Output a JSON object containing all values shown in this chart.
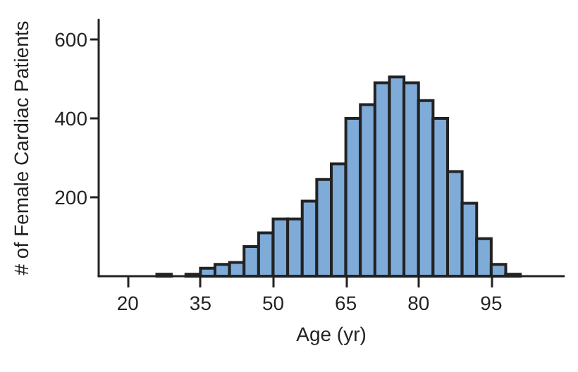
{
  "chart_data": {
    "type": "histogram",
    "xlabel": "Age (yr)",
    "ylabel": "# of Female Cardiac Patients",
    "bins": [
      26,
      29,
      32,
      35,
      38,
      41,
      44,
      47,
      50,
      53,
      56,
      59,
      62,
      65,
      68,
      71,
      74,
      77,
      80,
      83,
      86,
      89,
      92,
      95,
      98,
      101
    ],
    "values": [
      5,
      0,
      5,
      20,
      30,
      35,
      75,
      110,
      145,
      145,
      190,
      245,
      285,
      400,
      435,
      490,
      505,
      490,
      445,
      400,
      265,
      185,
      95,
      30,
      5
    ],
    "color": "#7fabd8",
    "xlim": [
      14,
      110
    ],
    "xticks": [
      20,
      35,
      50,
      65,
      80,
      95
    ],
    "ylim": [
      0,
      650
    ],
    "yticks": [
      200,
      400,
      600
    ],
    "grid": false
  }
}
